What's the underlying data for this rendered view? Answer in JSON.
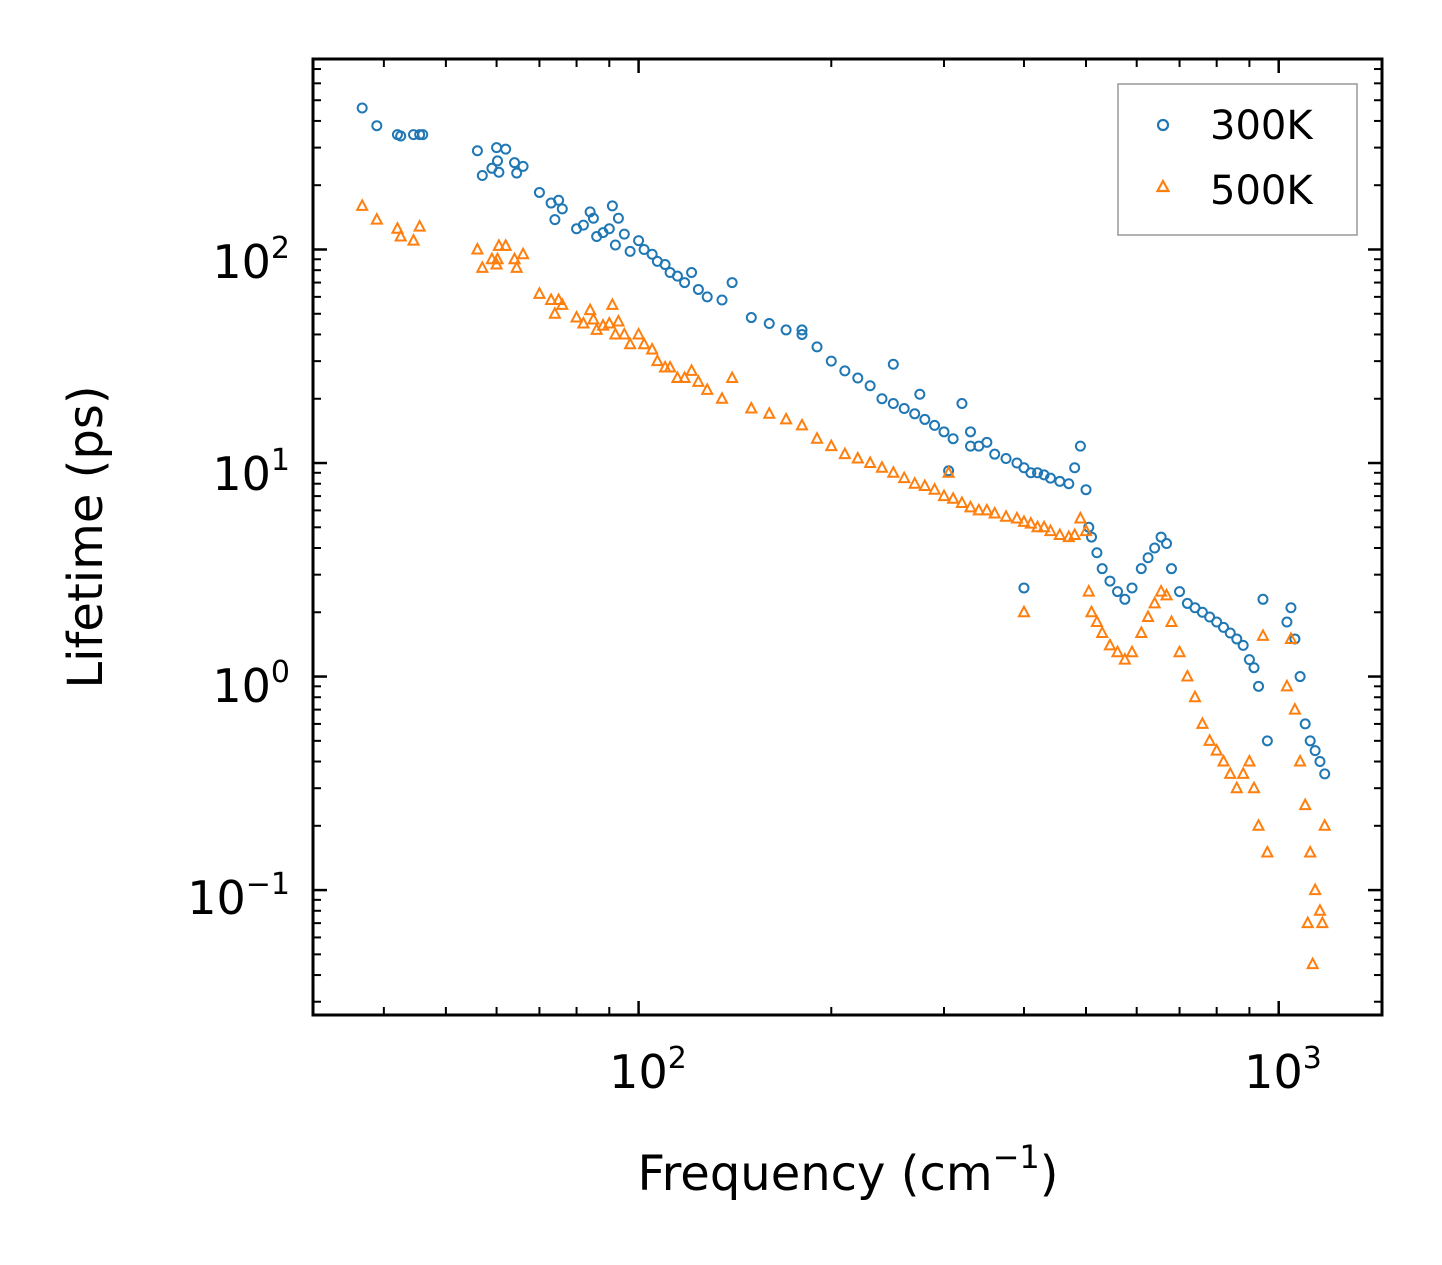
{
  "chart_data": {
    "type": "scatter",
    "scale": {
      "x": "log",
      "y": "log"
    },
    "xlabel": "Frequency (cm⁻¹)",
    "xlabel_main": "Frequency (cm",
    "xlabel_sup": "−1",
    "xlabel_close": ")",
    "ylabel": "Lifetime (ps)",
    "xlim": [
      31,
      1450
    ],
    "ylim": [
      0.026,
      780
    ],
    "x_ticks": [
      {
        "value": 100,
        "base": "10",
        "exp": "2"
      },
      {
        "value": 1000,
        "base": "10",
        "exp": "3"
      }
    ],
    "y_ticks": [
      {
        "value": 0.1,
        "base": "10",
        "exp": "−1"
      },
      {
        "value": 1,
        "base": "10",
        "exp": "0"
      },
      {
        "value": 10,
        "base": "10",
        "exp": "1"
      },
      {
        "value": 100,
        "base": "10",
        "exp": "2"
      }
    ],
    "legend_position": "top-right",
    "series": [
      {
        "name": "300K",
        "marker": "circle",
        "color": "#1f77b4",
        "points": [
          [
            37,
            460
          ],
          [
            39,
            380
          ],
          [
            42,
            345
          ],
          [
            42.5,
            340
          ],
          [
            44.5,
            345
          ],
          [
            45.5,
            345
          ],
          [
            46,
            345
          ],
          [
            56,
            290
          ],
          [
            57,
            222
          ],
          [
            59,
            240
          ],
          [
            60,
            300
          ],
          [
            60.2,
            260
          ],
          [
            60.5,
            230
          ],
          [
            62,
            295
          ],
          [
            64,
            255
          ],
          [
            64.5,
            228
          ],
          [
            66,
            245
          ],
          [
            70,
            185
          ],
          [
            73,
            165
          ],
          [
            74,
            138
          ],
          [
            75,
            170
          ],
          [
            76,
            155
          ],
          [
            80,
            125
          ],
          [
            82,
            130
          ],
          [
            84,
            150
          ],
          [
            85,
            140
          ],
          [
            86,
            115
          ],
          [
            88,
            120
          ],
          [
            90,
            125
          ],
          [
            91,
            160
          ],
          [
            92,
            105
          ],
          [
            93,
            140
          ],
          [
            95,
            118
          ],
          [
            97,
            98
          ],
          [
            100,
            110
          ],
          [
            102,
            100
          ],
          [
            105,
            95
          ],
          [
            107,
            88
          ],
          [
            110,
            85
          ],
          [
            112,
            78
          ],
          [
            115,
            75
          ],
          [
            118,
            70
          ],
          [
            121,
            78
          ],
          [
            124,
            65
          ],
          [
            128,
            60
          ],
          [
            135,
            58
          ],
          [
            140,
            70
          ],
          [
            150,
            48
          ],
          [
            160,
            45
          ],
          [
            170,
            42
          ],
          [
            180,
            40
          ],
          [
            190,
            35
          ],
          [
            200,
            30
          ],
          [
            210,
            27
          ],
          [
            220,
            25
          ],
          [
            230,
            23
          ],
          [
            240,
            20
          ],
          [
            250,
            19
          ],
          [
            260,
            18
          ],
          [
            270,
            17
          ],
          [
            280,
            16
          ],
          [
            290,
            15
          ],
          [
            300,
            14
          ],
          [
            310,
            13
          ],
          [
            320,
            19
          ],
          [
            330,
            12
          ],
          [
            340,
            12
          ],
          [
            350,
            12.5
          ],
          [
            360,
            11
          ],
          [
            375,
            10.5
          ],
          [
            390,
            10
          ],
          [
            400,
            9.5
          ],
          [
            410,
            9
          ],
          [
            420,
            9
          ],
          [
            430,
            8.8
          ],
          [
            440,
            8.5
          ],
          [
            455,
            8.2
          ],
          [
            470,
            8
          ],
          [
            480,
            9.5
          ],
          [
            490,
            12
          ],
          [
            500,
            7.5
          ],
          [
            505,
            5
          ],
          [
            510,
            4.5
          ],
          [
            520,
            3.8
          ],
          [
            530,
            3.2
          ],
          [
            545,
            2.8
          ],
          [
            560,
            2.5
          ],
          [
            575,
            2.3
          ],
          [
            590,
            2.6
          ],
          [
            610,
            3.2
          ],
          [
            625,
            3.6
          ],
          [
            640,
            4
          ],
          [
            655,
            4.5
          ],
          [
            668,
            4.2
          ],
          [
            680,
            3.2
          ],
          [
            700,
            2.5
          ],
          [
            720,
            2.2
          ],
          [
            740,
            2.1
          ],
          [
            760,
            2
          ],
          [
            780,
            1.9
          ],
          [
            800,
            1.8
          ],
          [
            820,
            1.7
          ],
          [
            840,
            1.6
          ],
          [
            860,
            1.5
          ],
          [
            880,
            1.4
          ],
          [
            900,
            1.2
          ],
          [
            915,
            1.1
          ],
          [
            930,
            0.9
          ],
          [
            945,
            2.3
          ],
          [
            960,
            0.5
          ],
          [
            1030,
            1.8
          ],
          [
            1045,
            2.1
          ],
          [
            1060,
            1.5
          ],
          [
            1080,
            1
          ],
          [
            1100,
            0.6
          ],
          [
            1120,
            0.5
          ],
          [
            1140,
            0.45
          ],
          [
            1160,
            0.4
          ],
          [
            1180,
            0.35
          ],
          [
            400,
            2.6
          ],
          [
            305,
            9.2
          ],
          [
            180,
            42
          ],
          [
            250,
            29
          ],
          [
            275,
            21
          ],
          [
            330,
            14
          ]
        ]
      },
      {
        "name": "500K",
        "marker": "triangle",
        "color": "#ff7f0e",
        "points": [
          [
            37,
            160
          ],
          [
            39,
            138
          ],
          [
            42,
            125
          ],
          [
            42.5,
            115
          ],
          [
            44.5,
            110
          ],
          [
            45.5,
            128
          ],
          [
            56,
            100
          ],
          [
            57,
            82
          ],
          [
            59,
            90
          ],
          [
            60,
            85
          ],
          [
            60.2,
            90
          ],
          [
            60.5,
            104
          ],
          [
            62,
            104
          ],
          [
            64,
            90
          ],
          [
            64.5,
            82
          ],
          [
            66,
            95
          ],
          [
            70,
            62
          ],
          [
            73,
            58
          ],
          [
            74,
            50
          ],
          [
            75,
            58
          ],
          [
            76,
            55
          ],
          [
            80,
            48
          ],
          [
            82,
            45
          ],
          [
            84,
            52
          ],
          [
            85,
            47
          ],
          [
            86,
            42
          ],
          [
            88,
            44
          ],
          [
            90,
            45
          ],
          [
            91,
            55
          ],
          [
            92,
            40
          ],
          [
            93,
            46
          ],
          [
            95,
            40
          ],
          [
            97,
            36
          ],
          [
            100,
            40
          ],
          [
            102,
            36
          ],
          [
            105,
            34
          ],
          [
            107,
            30
          ],
          [
            110,
            28
          ],
          [
            112,
            28
          ],
          [
            115,
            25
          ],
          [
            118,
            25
          ],
          [
            121,
            27
          ],
          [
            124,
            24
          ],
          [
            128,
            22
          ],
          [
            135,
            20
          ],
          [
            140,
            25
          ],
          [
            150,
            18
          ],
          [
            160,
            17
          ],
          [
            170,
            16
          ],
          [
            180,
            15
          ],
          [
            190,
            13
          ],
          [
            200,
            12
          ],
          [
            210,
            11
          ],
          [
            220,
            10.5
          ],
          [
            230,
            10
          ],
          [
            240,
            9.5
          ],
          [
            250,
            9
          ],
          [
            260,
            8.5
          ],
          [
            270,
            8
          ],
          [
            280,
            7.8
          ],
          [
            290,
            7.5
          ],
          [
            300,
            7
          ],
          [
            310,
            6.8
          ],
          [
            320,
            6.5
          ],
          [
            330,
            6.2
          ],
          [
            340,
            6
          ],
          [
            350,
            6
          ],
          [
            360,
            5.8
          ],
          [
            375,
            5.6
          ],
          [
            390,
            5.5
          ],
          [
            400,
            5.3
          ],
          [
            410,
            5.2
          ],
          [
            420,
            5
          ],
          [
            430,
            5
          ],
          [
            440,
            4.8
          ],
          [
            455,
            4.6
          ],
          [
            470,
            4.5
          ],
          [
            480,
            4.6
          ],
          [
            490,
            5.5
          ],
          [
            500,
            4.8
          ],
          [
            505,
            2.5
          ],
          [
            510,
            2
          ],
          [
            520,
            1.8
          ],
          [
            530,
            1.6
          ],
          [
            545,
            1.4
          ],
          [
            560,
            1.3
          ],
          [
            575,
            1.2
          ],
          [
            590,
            1.3
          ],
          [
            610,
            1.6
          ],
          [
            625,
            1.9
          ],
          [
            640,
            2.2
          ],
          [
            655,
            2.5
          ],
          [
            668,
            2.4
          ],
          [
            680,
            1.8
          ],
          [
            700,
            1.3
          ],
          [
            720,
            1
          ],
          [
            740,
            0.8
          ],
          [
            760,
            0.6
          ],
          [
            780,
            0.5
          ],
          [
            800,
            0.45
          ],
          [
            820,
            0.4
          ],
          [
            840,
            0.35
          ],
          [
            860,
            0.3
          ],
          [
            880,
            0.35
          ],
          [
            900,
            0.4
          ],
          [
            915,
            0.3
          ],
          [
            930,
            0.2
          ],
          [
            945,
            1.55
          ],
          [
            960,
            0.15
          ],
          [
            1030,
            0.9
          ],
          [
            1045,
            1.5
          ],
          [
            1060,
            0.7
          ],
          [
            1080,
            0.4
          ],
          [
            1100,
            0.25
          ],
          [
            1120,
            0.15
          ],
          [
            1140,
            0.1
          ],
          [
            1160,
            0.08
          ],
          [
            1180,
            0.2
          ],
          [
            400,
            2
          ],
          [
            305,
            9
          ],
          [
            1130,
            0.045
          ],
          [
            1110,
            0.07
          ],
          [
            1170,
            0.07
          ]
        ]
      }
    ]
  }
}
